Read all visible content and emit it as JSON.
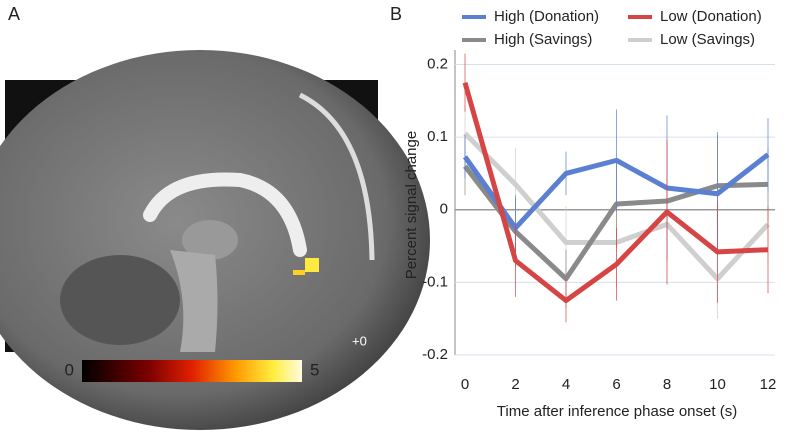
{
  "figure": {
    "panel_labels": [
      "A",
      "B"
    ],
    "slice_label": "+0",
    "colorbar": {
      "ticks": [
        0,
        5
      ]
    }
  },
  "chart_data": {
    "type": "line",
    "xlabel": "Time after inference phase onset (s)",
    "ylabel": "Percent signal change",
    "x": [
      0,
      2,
      4,
      6,
      8,
      10,
      12
    ],
    "xlim": [
      0,
      12
    ],
    "xticks": [
      0,
      2,
      4,
      6,
      8,
      10,
      12
    ],
    "ylim": [
      -0.2,
      0.22
    ],
    "yticks": [
      0.2,
      0.1,
      0,
      -0.1,
      -0.2
    ],
    "grid": true,
    "legend": "top",
    "series": [
      {
        "name": "High (Donation)",
        "color": "#5b7fd1",
        "values": [
          0.073,
          -0.025,
          0.05,
          0.068,
          0.03,
          0.022,
          0.076
        ],
        "errors": [
          0.03,
          0.04,
          0.03,
          0.07,
          0.1,
          0.085,
          0.05
        ]
      },
      {
        "name": "Low (Donation)",
        "color": "#d64545",
        "values": [
          0.175,
          -0.07,
          -0.125,
          -0.075,
          -0.003,
          -0.058,
          -0.055
        ],
        "errors": [
          0.04,
          0.05,
          0.03,
          0.05,
          0.1,
          0.07,
          0.06
        ]
      },
      {
        "name": "High (Savings)",
        "color": "#8a8a8a",
        "values": [
          0.06,
          -0.03,
          -0.095,
          0.008,
          0.012,
          0.033,
          0.035
        ],
        "errors": [
          0.04,
          0.05,
          0.04,
          0.06,
          0.08,
          0.07,
          0.05
        ]
      },
      {
        "name": "Low (Savings)",
        "color": "#cfcfcf",
        "values": [
          0.105,
          0.035,
          -0.045,
          -0.045,
          -0.02,
          -0.095,
          -0.02
        ],
        "errors": [
          0.04,
          0.05,
          0.05,
          0.06,
          0.08,
          0.055,
          0.05
        ]
      }
    ]
  }
}
